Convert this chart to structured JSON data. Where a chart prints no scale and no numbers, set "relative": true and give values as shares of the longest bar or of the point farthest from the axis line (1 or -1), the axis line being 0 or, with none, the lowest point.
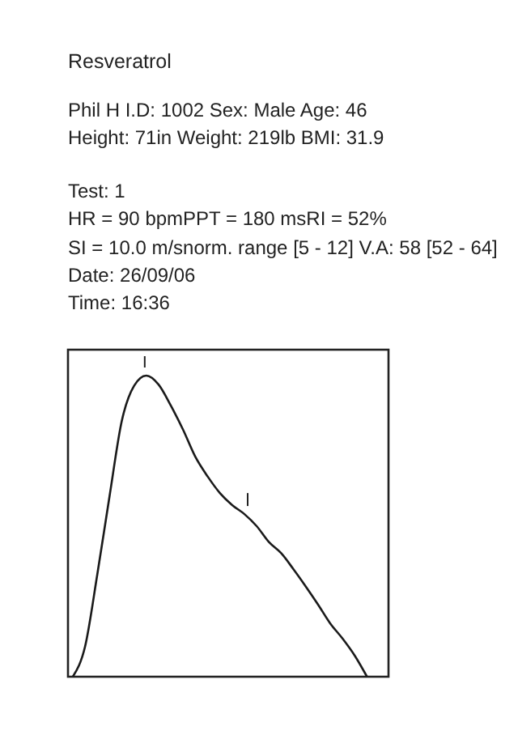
{
  "chart_data": {
    "type": "line",
    "title": "Resveratrol",
    "relative": true,
    "color": "#1a1a1a",
    "marker": "none",
    "grid": false,
    "annotations": [
      "Phil H I.D: 1002 Sex: Male  Age: 46",
      "Height: 71in Weight: 219lb BMI: 31.9",
      "Test: 1",
      "HR = 90   bpmPPT = 180 msRI = 52%",
      "SI = 10.0 m/snorm. range [5 - 12] V.A: 58 [52 - 64]",
      "Date: 26/09/06",
      "Time: 16:36"
    ],
    "categories": [
      null,
      null,
      null,
      null,
      null,
      null,
      null,
      null,
      null,
      null,
      null,
      null,
      null,
      null,
      null,
      null,
      null,
      null,
      null,
      null,
      null,
      null,
      null,
      null,
      null
    ],
    "values": [
      0,
      0.1,
      0.34,
      0.6,
      0.85,
      0.966,
      1,
      0.97,
      0.9,
      0.82,
      0.73,
      0.665,
      0.61,
      0.57,
      0.54,
      0.5,
      0.447,
      0.41,
      0.357,
      0.3,
      0.24,
      0.177,
      0.127,
      0.07,
      0
    ]
  }
}
